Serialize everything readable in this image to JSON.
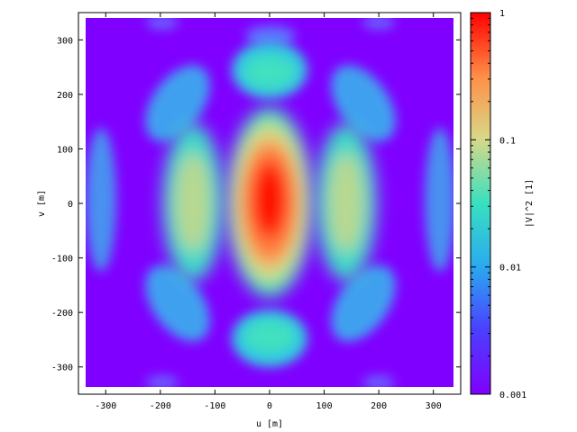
{
  "chart_data": {
    "type": "heatmap",
    "xlabel": "u [m]",
    "ylabel": "v [m]",
    "colorbar_label": "|V|^2 [1]",
    "xlim": [
      -350,
      350
    ],
    "ylim": [
      -350,
      350
    ],
    "data_extent": [
      -335,
      335
    ],
    "x_ticks": [
      -300,
      -200,
      -100,
      0,
      100,
      200,
      300
    ],
    "y_ticks": [
      -300,
      -200,
      -100,
      0,
      100,
      200,
      300
    ],
    "colorbar_ticks": [
      {
        "value": 1,
        "label": "1"
      },
      {
        "value": 0.1,
        "label": "0.1"
      },
      {
        "value": 0.01,
        "label": "0.01"
      },
      {
        "value": 0.001,
        "label": "0.001"
      }
    ],
    "color_scale": "log",
    "color_range": [
      0.001,
      1
    ],
    "colormap": [
      "#8000ff",
      "#4040ff",
      "#20c0e0",
      "#40e0b0",
      "#e0d080",
      "#ff8040",
      "#ff0000"
    ],
    "peak_value": 1,
    "peak_location": [
      0,
      0
    ],
    "grid": false,
    "colorbar_position": "right"
  }
}
